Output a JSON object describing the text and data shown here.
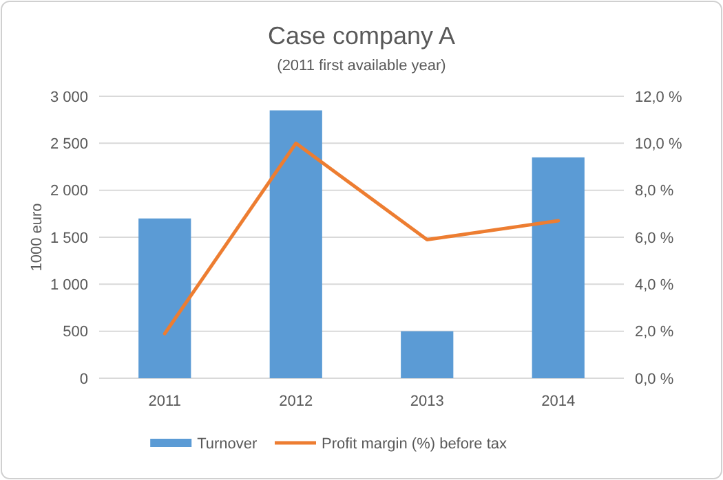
{
  "chart_data": {
    "type": "bar",
    "title": "Case company A",
    "subtitle": "(2011 first available year)",
    "ylabel": "1000 euro",
    "categories": [
      "2011",
      "2012",
      "2013",
      "2014"
    ],
    "series": [
      {
        "name": "Turnover",
        "color": "#5b9bd5",
        "values": [
          1700,
          2850,
          500,
          2350
        ]
      },
      {
        "name": "Profit margin (%) before tax",
        "type": "line",
        "axis": "y2",
        "color": "#ed7d31",
        "values": [
          1.9,
          10.0,
          5.9,
          6.7
        ]
      }
    ],
    "ylim": [
      0,
      3000
    ],
    "yticks": [
      0,
      500,
      {
        "value": 1000,
        "label": "1 000"
      },
      {
        "value": 1500,
        "label": "1 500"
      },
      {
        "value": 2000,
        "label": "2 000"
      },
      {
        "value": 2500,
        "label": "2 500"
      },
      {
        "value": 3000,
        "label": "3 000"
      }
    ],
    "y2lim": [
      0,
      12
    ],
    "y2ticks": [
      {
        "value": 0,
        "label": "0,0 %"
      },
      {
        "value": 2,
        "label": "2,0 %"
      },
      {
        "value": 4,
        "label": "4,0 %"
      },
      {
        "value": 6,
        "label": "6,0 %"
      },
      {
        "value": 8,
        "label": "8,0 %"
      },
      {
        "value": 10,
        "label": "10,0 %"
      },
      {
        "value": 12,
        "label": "12,0 %"
      }
    ],
    "grid": "y",
    "legend": "bottom",
    "marker": "none",
    "line_style": "solid"
  }
}
